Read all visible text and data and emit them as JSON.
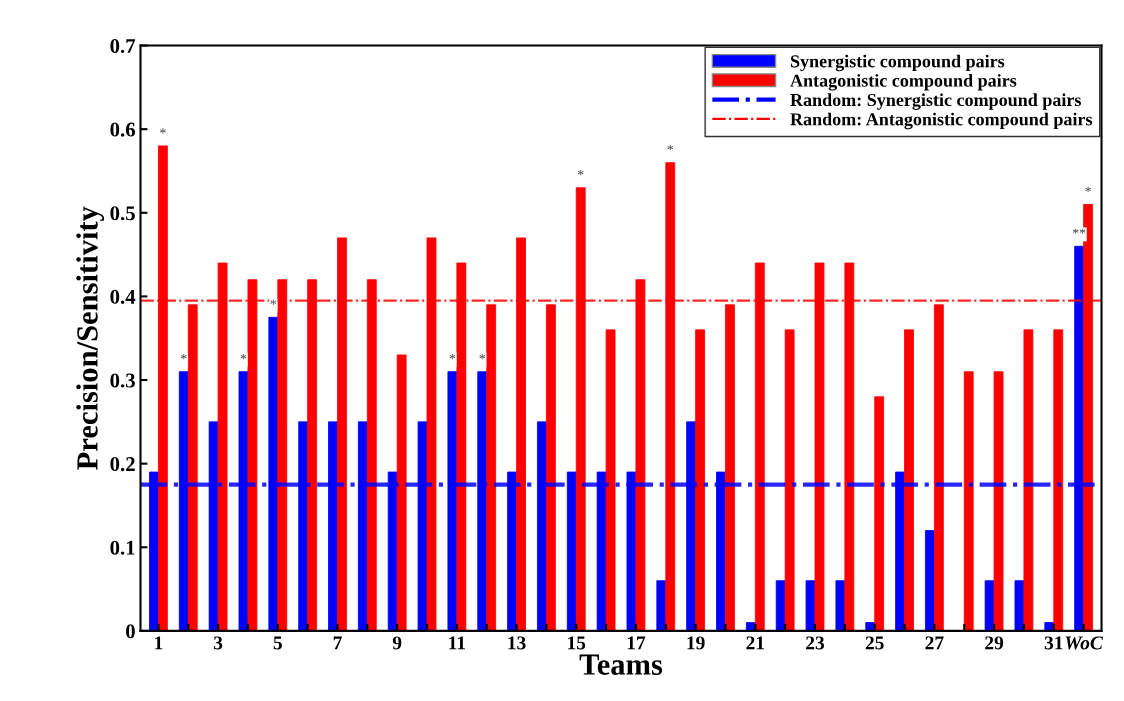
{
  "chart_data": {
    "type": "bar",
    "xlabel": "Teams",
    "ylabel": "Precision/Sensitivity",
    "categories": [
      "1",
      null,
      "3",
      null,
      "5",
      null,
      "7",
      null,
      "9",
      null,
      "11",
      null,
      "13",
      null,
      "15",
      null,
      "17",
      null,
      "19",
      null,
      "21",
      null,
      "23",
      null,
      "25",
      null,
      "27",
      null,
      "29",
      null,
      "31",
      "WoC"
    ],
    "series": [
      {
        "name": "Synergistic compound pairs",
        "color": "#0000ff",
        "values": [
          0.19,
          0.31,
          0.25,
          0.31,
          0.375,
          0.25,
          0.25,
          0.25,
          0.19,
          0.25,
          0.31,
          0.31,
          0.19,
          0.25,
          0.19,
          0.19,
          0.19,
          0.06,
          0.25,
          0.19,
          0.01,
          0.06,
          0.06,
          0.06,
          0.01,
          0.19,
          0.12,
          0,
          0.06,
          0.06,
          0.01,
          0.46
        ],
        "value_labels": [
          null,
          "*",
          null,
          "*",
          "*",
          null,
          null,
          null,
          null,
          null,
          "*",
          "*",
          null,
          null,
          null,
          null,
          null,
          null,
          null,
          null,
          null,
          null,
          null,
          null,
          null,
          null,
          null,
          null,
          null,
          null,
          null,
          "**"
        ]
      },
      {
        "name": "Antagonistic compound pairs",
        "color": "#ff0000",
        "values": [
          0.58,
          0.39,
          0.44,
          0.42,
          0.42,
          0.42,
          0.47,
          0.42,
          0.33,
          0.47,
          0.44,
          0.39,
          0.47,
          0.39,
          0.53,
          0.36,
          0.42,
          0.56,
          0.36,
          0.39,
          0.44,
          0.36,
          0.44,
          0.44,
          0.28,
          0.36,
          0.39,
          0.31,
          0.31,
          0.36,
          0.36,
          0.51
        ],
        "value_labels": [
          "*",
          null,
          null,
          null,
          null,
          null,
          null,
          null,
          null,
          null,
          null,
          null,
          null,
          null,
          "*",
          null,
          null,
          "*",
          null,
          null,
          null,
          null,
          null,
          null,
          null,
          null,
          null,
          null,
          null,
          null,
          null,
          "*"
        ]
      }
    ],
    "ref_lines": [
      {
        "axis": "y",
        "value": 0.175,
        "label": "Random: Synergistic compound pairs",
        "color": "#0000ff",
        "line_style": "dashdot"
      },
      {
        "axis": "y",
        "value": 0.395,
        "label": "Random: Antagonistic compound pairs",
        "color": "#ff0000",
        "line_style": "dashdot"
      }
    ],
    "ylim": [
      0,
      0.7
    ],
    "yticks": [
      0,
      0.1,
      0.2,
      0.3,
      0.4,
      0.5,
      0.6,
      0.7
    ],
    "legend": "top right"
  }
}
